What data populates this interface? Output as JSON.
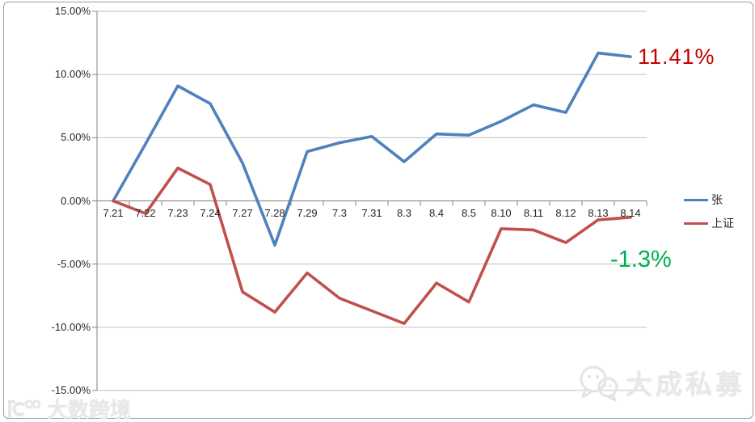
{
  "chart_data": {
    "type": "line",
    "title": "",
    "xlabel": "",
    "ylabel": "",
    "categories": [
      "7.21",
      "7.22",
      "7.23",
      "7.24",
      "7.27",
      "7.28",
      "7.29",
      "7.3",
      "7.31",
      "8.3",
      "8.4",
      "8.5",
      "8.10",
      "8.11",
      "8.12",
      "8.13",
      "8.14"
    ],
    "series": [
      {
        "name": "张",
        "color": "#4f81bd",
        "values": [
          0,
          4.5,
          9.1,
          7.7,
          3.0,
          -3.5,
          3.9,
          4.6,
          5.1,
          3.1,
          5.3,
          5.2,
          6.3,
          7.6,
          7.0,
          11.7,
          11.41
        ]
      },
      {
        "name": "上证",
        "color": "#c0504d",
        "values": [
          0,
          -1.0,
          2.6,
          1.3,
          -7.2,
          -8.8,
          -5.7,
          -7.7,
          -8.7,
          -9.7,
          -6.5,
          -8.0,
          -2.2,
          -2.3,
          -3.3,
          -1.5,
          -1.3
        ]
      }
    ],
    "ylim": [
      -15,
      15
    ],
    "ytick_values": [
      15,
      10,
      5,
      0,
      -5,
      -10,
      -15
    ],
    "ytick_labels": [
      "15.00%",
      "10.00%",
      "5.00%",
      "0.00%",
      "-5.00%",
      "-10.00%",
      "-15.00%"
    ],
    "grid": true,
    "legend_position": "right"
  },
  "legend": {
    "items": [
      "张",
      "上证"
    ]
  },
  "annotations": {
    "series1_final": {
      "text": "11.41%",
      "color": "#c00000"
    },
    "series2_final": {
      "text": "-1.3%",
      "color": "#00b050"
    }
  },
  "watermarks": {
    "bottom_left": "大数跨境",
    "bottom_right": "大成私募"
  },
  "colors": {
    "gridline": "#bfbfbf",
    "axis": "#808080"
  }
}
